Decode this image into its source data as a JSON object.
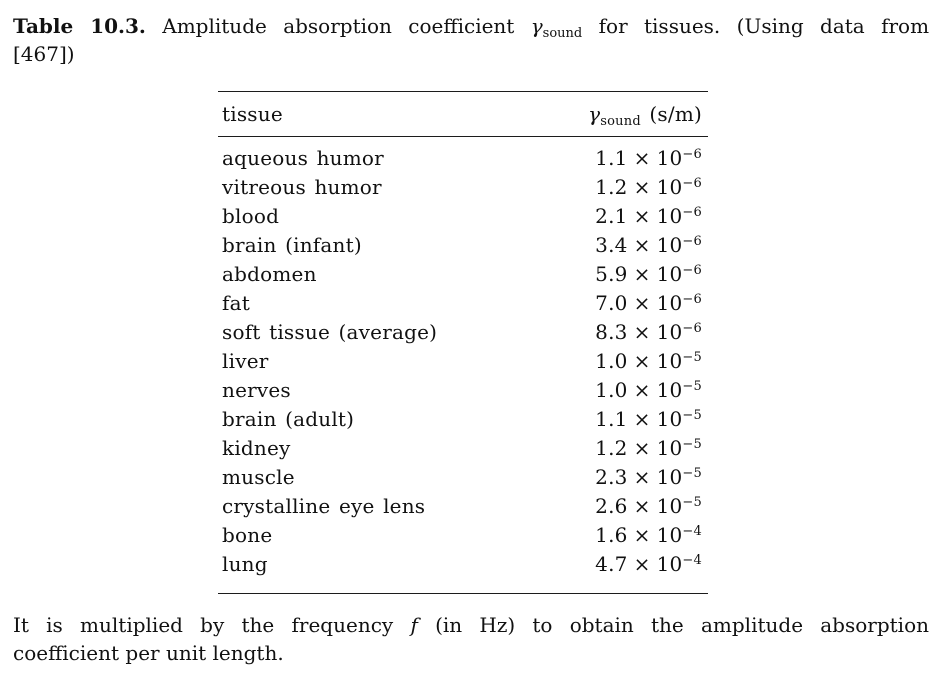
{
  "page": {
    "background": "#ffffff",
    "text_color": "#111111"
  },
  "caption": {
    "label": "Table 10.3.",
    "text_before_symbol": "Amplitude absorption coefficient",
    "symbol": "γ",
    "symbol_subscript": "sound",
    "text_after_symbol": "for tissues. (Using data from",
    "line2": "[467])"
  },
  "table": {
    "header": {
      "col_tissue": "tissue",
      "symbol": "γ",
      "symbol_subscript": "sound",
      "unit": "(s/m)"
    },
    "times_symbol": "×",
    "base": "10",
    "rows": [
      {
        "tissue": "aqueous humor",
        "mantissa": "1.1",
        "exponent": "−6"
      },
      {
        "tissue": "vitreous humor",
        "mantissa": "1.2",
        "exponent": "−6"
      },
      {
        "tissue": "blood",
        "mantissa": "2.1",
        "exponent": "−6"
      },
      {
        "tissue": "brain (infant)",
        "mantissa": "3.4",
        "exponent": "−6"
      },
      {
        "tissue": "abdomen",
        "mantissa": "5.9",
        "exponent": "−6"
      },
      {
        "tissue": "fat",
        "mantissa": "7.0",
        "exponent": "−6"
      },
      {
        "tissue": "soft tissue (average)",
        "mantissa": "8.3",
        "exponent": "−6"
      },
      {
        "tissue": "liver",
        "mantissa": "1.0",
        "exponent": "−5"
      },
      {
        "tissue": "nerves",
        "mantissa": "1.0",
        "exponent": "−5"
      },
      {
        "tissue": "brain (adult)",
        "mantissa": "1.1",
        "exponent": "−5"
      },
      {
        "tissue": "kidney",
        "mantissa": "1.2",
        "exponent": "−5"
      },
      {
        "tissue": "muscle",
        "mantissa": "2.3",
        "exponent": "−5"
      },
      {
        "tissue": "crystalline eye lens",
        "mantissa": "2.6",
        "exponent": "−5"
      },
      {
        "tissue": "bone",
        "mantissa": "1.6",
        "exponent": "−4"
      },
      {
        "tissue": "lung",
        "mantissa": "4.7",
        "exponent": "−4"
      }
    ]
  },
  "footnote": {
    "text_before_f": "It is multiplied by the frequency",
    "symbol_f": "f",
    "text_after_f": "(in Hz) to obtain the amplitude absorption",
    "line2": "coefficient per unit length."
  }
}
